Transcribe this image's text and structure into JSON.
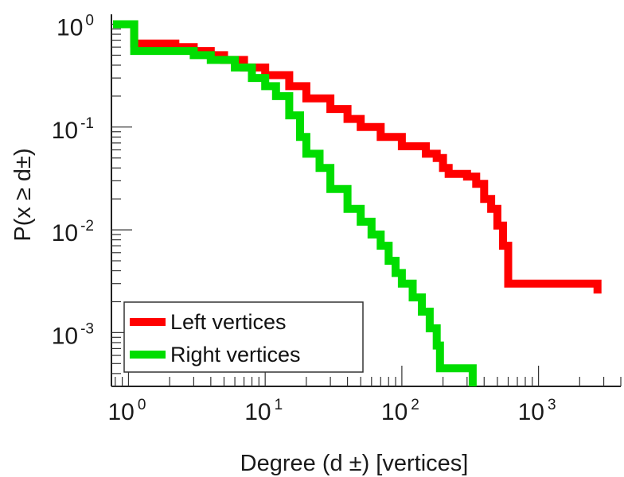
{
  "chart_data": {
    "type": "line",
    "step": true,
    "xscale": "log",
    "yscale": "log",
    "xlim": [
      0.75,
      4000
    ],
    "ylim": [
      0.0003,
      1.25
    ],
    "xlabel": "Degree (d  ±) [vertices]",
    "ylabel": "P(x ≥ d±)",
    "legend_position": "bottom-left",
    "x_ticks": [
      {
        "base": "10",
        "exp": "0"
      },
      {
        "base": "10",
        "exp": "1"
      },
      {
        "base": "10",
        "exp": "2"
      },
      {
        "base": "10",
        "exp": "3"
      }
    ],
    "y_ticks": [
      {
        "base": "10",
        "exp": "0"
      },
      {
        "base": "10",
        "exp": "-1"
      },
      {
        "base": "10",
        "exp": "-2"
      },
      {
        "base": "10",
        "exp": "-3"
      }
    ],
    "series": [
      {
        "name": "Left vertices",
        "color": "#ff0000",
        "points": [
          [
            1,
            1.0
          ],
          [
            1.1,
            0.65
          ],
          [
            2,
            0.65
          ],
          [
            2.2,
            0.6
          ],
          [
            3,
            0.55
          ],
          [
            4,
            0.5
          ],
          [
            5,
            0.45
          ],
          [
            7,
            0.38
          ],
          [
            10,
            0.32
          ],
          [
            15,
            0.25
          ],
          [
            20,
            0.19
          ],
          [
            30,
            0.15
          ],
          [
            40,
            0.12
          ],
          [
            50,
            0.1
          ],
          [
            70,
            0.08
          ],
          [
            100,
            0.065
          ],
          [
            150,
            0.055
          ],
          [
            180,
            0.05
          ],
          [
            200,
            0.04
          ],
          [
            220,
            0.035
          ],
          [
            300,
            0.033
          ],
          [
            350,
            0.028
          ],
          [
            400,
            0.02
          ],
          [
            450,
            0.016
          ],
          [
            500,
            0.011
          ],
          [
            550,
            0.007
          ],
          [
            600,
            0.003
          ],
          [
            700,
            0.003
          ],
          [
            2700,
            0.003
          ],
          [
            2700,
            0.0024
          ]
        ]
      },
      {
        "name": "Right vertices",
        "color": "#00dd00",
        "points": [
          [
            0.77,
            1.0
          ],
          [
            1.1,
            1.0
          ],
          [
            1.1,
            0.55
          ],
          [
            3,
            0.5
          ],
          [
            4,
            0.45
          ],
          [
            6,
            0.38
          ],
          [
            8,
            0.3
          ],
          [
            10,
            0.25
          ],
          [
            12,
            0.2
          ],
          [
            15,
            0.13
          ],
          [
            18,
            0.08
          ],
          [
            20,
            0.055
          ],
          [
            25,
            0.04
          ],
          [
            30,
            0.025
          ],
          [
            40,
            0.016
          ],
          [
            50,
            0.012
          ],
          [
            60,
            0.009
          ],
          [
            70,
            0.007
          ],
          [
            80,
            0.005
          ],
          [
            90,
            0.0038
          ],
          [
            100,
            0.003
          ],
          [
            120,
            0.0022
          ],
          [
            140,
            0.0016
          ],
          [
            160,
            0.0011
          ],
          [
            180,
            0.00075
          ],
          [
            190,
            0.00045
          ],
          [
            330,
            0.00045
          ],
          [
            330,
            0.0003
          ]
        ]
      }
    ]
  }
}
